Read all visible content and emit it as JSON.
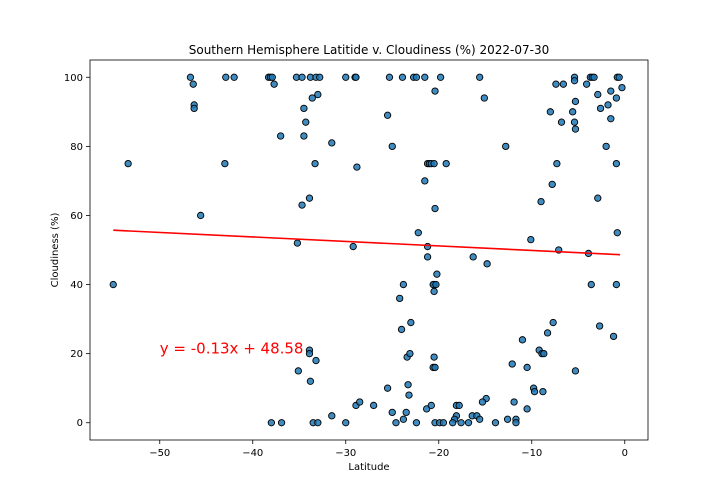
{
  "chart_data": {
    "type": "scatter",
    "title": "Southern Hemisphere Latitide v. Cloudiness (%) 2022-07-30",
    "xlabel": "Latitude",
    "ylabel": "Cloudiness (%)",
    "xlim": [
      -57.5,
      2.5
    ],
    "ylim": [
      -5,
      105
    ],
    "xticks": [
      -50,
      -40,
      -30,
      -20,
      -10,
      0
    ],
    "yticks": [
      0,
      20,
      40,
      60,
      80,
      100
    ],
    "grid": false,
    "marker_color": "#1f77b4",
    "marker_edge_color": "#000000",
    "line_color": "#ff0000",
    "regression": {
      "slope": -0.13,
      "intercept": 48.58,
      "x_range": [
        -55,
        -0.5
      ]
    },
    "annotation": {
      "text": "y = -0.13x + 48.58",
      "x": -50,
      "y": 20
    },
    "points": [
      [
        -55,
        40
      ],
      [
        -53.4,
        75
      ],
      [
        -46.7,
        100
      ],
      [
        -46.4,
        98
      ],
      [
        -46.3,
        92
      ],
      [
        -46.3,
        91
      ],
      [
        -45.6,
        60
      ],
      [
        -43,
        75
      ],
      [
        -42.9,
        100
      ],
      [
        -42,
        100
      ],
      [
        -38.3,
        100
      ],
      [
        -38.1,
        100
      ],
      [
        -37.9,
        100
      ],
      [
        -37.7,
        98
      ],
      [
        -38,
        0
      ],
      [
        -37,
        83
      ],
      [
        -36.9,
        0
      ],
      [
        -35.3,
        100
      ],
      [
        -34.7,
        100
      ],
      [
        -34.5,
        91
      ],
      [
        -34.3,
        87
      ],
      [
        -34.5,
        83
      ],
      [
        -34.7,
        63
      ],
      [
        -35.2,
        52
      ],
      [
        -35.1,
        15
      ],
      [
        -33.9,
        65
      ],
      [
        -33.8,
        100
      ],
      [
        -33.6,
        94
      ],
      [
        -33,
        95
      ],
      [
        -33.2,
        100
      ],
      [
        -32.8,
        100
      ],
      [
        -33.3,
        75
      ],
      [
        -33.9,
        21
      ],
      [
        -33.9,
        20
      ],
      [
        -33.8,
        12
      ],
      [
        -33.2,
        18
      ],
      [
        -33.5,
        0
      ],
      [
        -33,
        0
      ],
      [
        -31.5,
        81
      ],
      [
        -31.5,
        2
      ],
      [
        -30,
        100
      ],
      [
        -30,
        0
      ],
      [
        -29,
        100
      ],
      [
        -28.9,
        100
      ],
      [
        -28.8,
        74
      ],
      [
        -29.2,
        51
      ],
      [
        -28.9,
        5
      ],
      [
        -28.5,
        6
      ],
      [
        -27,
        5
      ],
      [
        -25.3,
        100
      ],
      [
        -25.5,
        89
      ],
      [
        -25,
        80
      ],
      [
        -25.5,
        10
      ],
      [
        -25,
        3
      ],
      [
        -24.6,
        0
      ],
      [
        -23.9,
        100
      ],
      [
        -24.2,
        36
      ],
      [
        -23.8,
        40
      ],
      [
        -24,
        27
      ],
      [
        -23.8,
        1
      ],
      [
        -23.5,
        3
      ],
      [
        -23.4,
        19
      ],
      [
        -23.1,
        20
      ],
      [
        -23.3,
        11
      ],
      [
        -23.2,
        8
      ],
      [
        -23,
        29
      ],
      [
        -22.7,
        100
      ],
      [
        -22.4,
        100
      ],
      [
        -22.2,
        55
      ],
      [
        -22.4,
        0
      ],
      [
        -21.5,
        100
      ],
      [
        -21.5,
        70
      ],
      [
        -21.2,
        75
      ],
      [
        -21,
        75
      ],
      [
        -20.8,
        75
      ],
      [
        -21.2,
        51
      ],
      [
        -21.2,
        48
      ],
      [
        -21.3,
        4
      ],
      [
        -20.4,
        96
      ],
      [
        -20.5,
        75
      ],
      [
        -20.4,
        62
      ],
      [
        -20.5,
        40
      ],
      [
        -20.6,
        40
      ],
      [
        -20.3,
        40
      ],
      [
        -20.5,
        38
      ],
      [
        -20.2,
        43
      ],
      [
        -20.5,
        19
      ],
      [
        -20.6,
        16
      ],
      [
        -20.4,
        16
      ],
      [
        -20.8,
        5
      ],
      [
        -20.4,
        0
      ],
      [
        -19.9,
        0
      ],
      [
        -19.5,
        0
      ],
      [
        -19.8,
        100
      ],
      [
        -19.2,
        75
      ],
      [
        -18.1,
        5
      ],
      [
        -17.8,
        5
      ],
      [
        -18.1,
        2
      ],
      [
        -18.3,
        1
      ],
      [
        -17.6,
        0
      ],
      [
        -18.5,
        0
      ],
      [
        -16.8,
        0
      ],
      [
        -16.4,
        2
      ],
      [
        -16.3,
        48
      ],
      [
        -15.9,
        2
      ],
      [
        -15.6,
        1
      ],
      [
        -15.6,
        100
      ],
      [
        -15.1,
        94
      ],
      [
        -14.8,
        46
      ],
      [
        -14.9,
        7
      ],
      [
        -15.3,
        6
      ],
      [
        -13.9,
        0
      ],
      [
        -12.8,
        80
      ],
      [
        -12.6,
        1
      ],
      [
        -12.1,
        17
      ],
      [
        -11.9,
        6
      ],
      [
        -11.7,
        1
      ],
      [
        -11.7,
        0
      ],
      [
        -11,
        24
      ],
      [
        -10.5,
        16
      ],
      [
        -10.1,
        53
      ],
      [
        -10.5,
        4
      ],
      [
        -9.8,
        10
      ],
      [
        -9.7,
        9
      ],
      [
        -9.2,
        21
      ],
      [
        -9,
        64
      ],
      [
        -8.9,
        20
      ],
      [
        -8.7,
        20
      ],
      [
        -8.8,
        9
      ],
      [
        -8.3,
        26
      ],
      [
        -8,
        90
      ],
      [
        -7.7,
        29
      ],
      [
        -7.8,
        69
      ],
      [
        -7.4,
        98
      ],
      [
        -7.3,
        75
      ],
      [
        -7.1,
        50
      ],
      [
        -6.8,
        87
      ],
      [
        -6.6,
        98
      ],
      [
        -5.4,
        100
      ],
      [
        -5.4,
        99
      ],
      [
        -5.3,
        93
      ],
      [
        -5.6,
        90
      ],
      [
        -5.4,
        87
      ],
      [
        -5.3,
        85
      ],
      [
        -5.3,
        15
      ],
      [
        -4.1,
        98
      ],
      [
        -3.7,
        100
      ],
      [
        -3.5,
        100
      ],
      [
        -3.3,
        100
      ],
      [
        -3.9,
        49
      ],
      [
        -3.6,
        40
      ],
      [
        -2.9,
        95
      ],
      [
        -2.9,
        65
      ],
      [
        -2.6,
        91
      ],
      [
        -2.7,
        28
      ],
      [
        -2,
        80
      ],
      [
        -1.8,
        92
      ],
      [
        -1.5,
        88
      ],
      [
        -1.5,
        96
      ],
      [
        -1.2,
        25
      ],
      [
        -0.9,
        94
      ],
      [
        -0.8,
        100
      ],
      [
        -0.6,
        100
      ],
      [
        -0.9,
        75
      ],
      [
        -0.8,
        55
      ],
      [
        -0.9,
        40
      ],
      [
        -0.3,
        97
      ]
    ]
  }
}
